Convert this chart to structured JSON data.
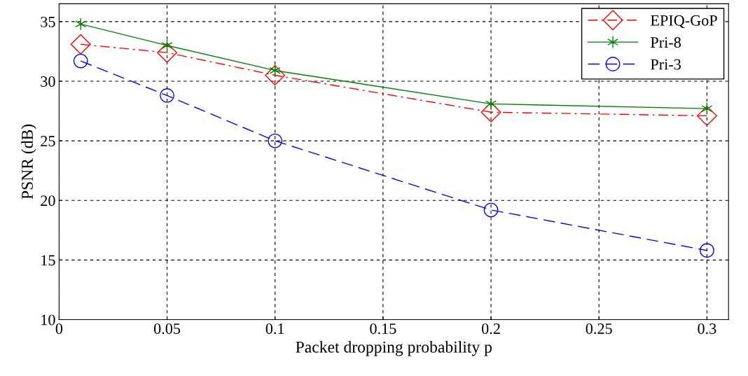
{
  "chart_data": {
    "type": "line",
    "xlabel": "Packet dropping probability p",
    "ylabel": "PSNR (dB)",
    "x": [
      0.01,
      0.05,
      0.1,
      0.2,
      0.3
    ],
    "series": [
      {
        "name": "EPIQ-GoP",
        "color": "#ff0000",
        "marker": "diamond",
        "line_style": "dashdot",
        "values": [
          33.1,
          32.4,
          30.5,
          27.4,
          27.1
        ]
      },
      {
        "name": "Pri-8",
        "color": "#008000",
        "marker": "cross",
        "line_style": "solid",
        "values": [
          34.8,
          33.0,
          30.9,
          28.1,
          27.7
        ]
      },
      {
        "name": "Pri-3",
        "color": "#0000ff",
        "marker": "circle",
        "line_style": "dashed",
        "values": [
          31.7,
          28.8,
          25.0,
          19.2,
          15.8
        ]
      }
    ],
    "xlim": [
      0,
      0.31
    ],
    "ylim": [
      10,
      36.5
    ],
    "xticks": [
      0,
      0.05,
      0.1,
      0.15,
      0.2,
      0.25,
      0.3
    ],
    "yticks": [
      10,
      15,
      20,
      25,
      30,
      35
    ],
    "grid": true,
    "legend": "top right"
  }
}
